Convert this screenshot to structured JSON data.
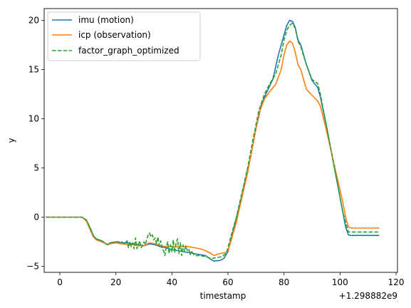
{
  "chart_data": {
    "type": "line",
    "title": "",
    "xlabel": "timestamp",
    "ylabel": "y",
    "x_offset_label": "+1.298882e9",
    "xlim": [
      -5.6,
      120.5
    ],
    "ylim": [
      -5.6,
      21.2
    ],
    "xticks": [
      0,
      20,
      40,
      60,
      80,
      100,
      120
    ],
    "yticks": [
      -5,
      0,
      5,
      10,
      15,
      20
    ],
    "xtick_labels": [
      "0",
      "20",
      "40",
      "60",
      "80",
      "100",
      "120"
    ],
    "ytick_labels": [
      "−5",
      "0",
      "5",
      "10",
      "15",
      "20"
    ],
    "grid": false,
    "legend_position": "upper-left",
    "series": [
      {
        "name": "imu (motion)",
        "color": "#1f77b4",
        "style": "solid",
        "points": [
          [
            -5,
            0
          ],
          [
            8,
            0
          ],
          [
            9.5,
            -0.3
          ],
          [
            11,
            -1.2
          ],
          [
            12,
            -1.9
          ],
          [
            13,
            -2.2
          ],
          [
            15,
            -2.4
          ],
          [
            17,
            -2.8
          ],
          [
            18,
            -2.6
          ],
          [
            20,
            -2.5
          ],
          [
            22,
            -2.6
          ],
          [
            24,
            -2.6
          ],
          [
            26,
            -2.7
          ],
          [
            28,
            -2.8
          ],
          [
            30,
            -2.9
          ],
          [
            32,
            -2.7
          ],
          [
            34,
            -2.8
          ],
          [
            36,
            -3.0
          ],
          [
            38,
            -3.1
          ],
          [
            40,
            -3.3
          ],
          [
            42,
            -3.4
          ],
          [
            44,
            -3.5
          ],
          [
            46,
            -3.6
          ],
          [
            48,
            -3.7
          ],
          [
            50,
            -3.8
          ],
          [
            52,
            -3.9
          ],
          [
            54,
            -4.3
          ],
          [
            55,
            -4.45
          ],
          [
            57,
            -4.4
          ],
          [
            58.5,
            -4.2
          ],
          [
            60,
            -3.5
          ],
          [
            62,
            -1.2
          ],
          [
            64,
            1.0
          ],
          [
            66,
            3.5
          ],
          [
            68,
            6.0
          ],
          [
            70,
            9.0
          ],
          [
            72,
            11.5
          ],
          [
            74,
            12.8
          ],
          [
            76,
            14.0
          ],
          [
            78,
            16.5
          ],
          [
            80,
            18.5
          ],
          [
            81,
            19.5
          ],
          [
            82,
            20.0
          ],
          [
            83,
            19.9
          ],
          [
            84,
            19.3
          ],
          [
            85,
            18.0
          ],
          [
            86,
            17.5
          ],
          [
            88,
            15.5
          ],
          [
            90,
            13.9
          ],
          [
            92,
            13.2
          ],
          [
            93,
            12.2
          ],
          [
            95,
            9.5
          ],
          [
            97,
            6.5
          ],
          [
            99,
            3.5
          ],
          [
            101,
            0.5
          ],
          [
            102,
            -1.0
          ],
          [
            103,
            -1.8
          ],
          [
            104,
            -1.85
          ],
          [
            114,
            -1.85
          ]
        ]
      },
      {
        "name": "icp (observation)",
        "color": "#ff7f0e",
        "style": "solid",
        "points": [
          [
            -5,
            0
          ],
          [
            8,
            0
          ],
          [
            9.5,
            -0.4
          ],
          [
            11,
            -1.4
          ],
          [
            12,
            -2.0
          ],
          [
            13,
            -2.3
          ],
          [
            15,
            -2.5
          ],
          [
            17,
            -2.8
          ],
          [
            18,
            -2.7
          ],
          [
            20,
            -2.6
          ],
          [
            22,
            -2.7
          ],
          [
            24,
            -2.75
          ],
          [
            26,
            -2.8
          ],
          [
            28,
            -2.9
          ],
          [
            30,
            -2.9
          ],
          [
            32,
            -2.6
          ],
          [
            34,
            -2.7
          ],
          [
            36,
            -2.9
          ],
          [
            38,
            -3.0
          ],
          [
            40,
            -3.0
          ],
          [
            42,
            -3.0
          ],
          [
            44,
            -3.0
          ],
          [
            46,
            -3.0
          ],
          [
            48,
            -3.1
          ],
          [
            50,
            -3.2
          ],
          [
            52,
            -3.4
          ],
          [
            54,
            -3.7
          ],
          [
            55,
            -3.9
          ],
          [
            57,
            -3.7
          ],
          [
            59,
            -3.6
          ],
          [
            60,
            -3.4
          ],
          [
            61,
            -2.5
          ],
          [
            63,
            -0.5
          ],
          [
            65,
            2.0
          ],
          [
            67,
            4.5
          ],
          [
            69,
            7.5
          ],
          [
            71,
            10.5
          ],
          [
            73,
            12.0
          ],
          [
            75,
            12.8
          ],
          [
            77,
            13.5
          ],
          [
            79,
            15.0
          ],
          [
            80,
            16.5
          ],
          [
            81,
            17.5
          ],
          [
            82,
            17.9
          ],
          [
            83,
            17.7
          ],
          [
            84,
            16.8
          ],
          [
            85,
            15.5
          ],
          [
            86,
            15.0
          ],
          [
            88,
            13.0
          ],
          [
            90,
            12.4
          ],
          [
            92,
            11.8
          ],
          [
            93,
            11.3
          ],
          [
            95,
            9.0
          ],
          [
            97,
            6.5
          ],
          [
            99,
            4.0
          ],
          [
            101,
            1.5
          ],
          [
            102,
            0.0
          ],
          [
            103,
            -1.0
          ],
          [
            104,
            -1.1
          ],
          [
            114,
            -1.1
          ]
        ]
      },
      {
        "name": "factor_graph_optimized",
        "color": "#2ca02c",
        "style": "dashed",
        "points": [
          [
            -5,
            0
          ],
          [
            8,
            0
          ],
          [
            9.5,
            -0.3
          ],
          [
            11,
            -1.2
          ],
          [
            12,
            -1.9
          ],
          [
            13,
            -2.2
          ],
          [
            15,
            -2.4
          ],
          [
            17,
            -2.8
          ],
          [
            18,
            -2.6
          ],
          [
            20,
            -2.5
          ],
          [
            22,
            -2.5
          ],
          [
            23,
            -2.7
          ],
          [
            24,
            -2.4
          ],
          [
            24.5,
            -3.1
          ],
          [
            25,
            -2.5
          ],
          [
            25.5,
            -3.0
          ],
          [
            26,
            -2.6
          ],
          [
            26.5,
            -3.2
          ],
          [
            27,
            -2.1
          ],
          [
            27.5,
            -3.2
          ],
          [
            28,
            -2.8
          ],
          [
            28.5,
            -2.4
          ],
          [
            29,
            -3.1
          ],
          [
            29.5,
            -2.9
          ],
          [
            30,
            -2.5
          ],
          [
            30.5,
            -2.8
          ],
          [
            31,
            -2.3
          ],
          [
            31.5,
            -1.8
          ],
          [
            32,
            -1.6
          ],
          [
            32.5,
            -2.0
          ],
          [
            33,
            -1.8
          ],
          [
            33.5,
            -2.3
          ],
          [
            34,
            -2.1
          ],
          [
            34.5,
            -2.7
          ],
          [
            35,
            -2.0
          ],
          [
            35.5,
            -2.9
          ],
          [
            36,
            -2.4
          ],
          [
            36.5,
            -3.2
          ],
          [
            37,
            -3.4
          ],
          [
            37.5,
            -3.9
          ],
          [
            38,
            -3.0
          ],
          [
            38.5,
            -2.5
          ],
          [
            39,
            -3.7
          ],
          [
            39.5,
            -2.8
          ],
          [
            40,
            -3.5
          ],
          [
            40.5,
            -2.3
          ],
          [
            41,
            -3.6
          ],
          [
            41.5,
            -2.6
          ],
          [
            42,
            -2.2
          ],
          [
            42.5,
            -3.7
          ],
          [
            43,
            -2.6
          ],
          [
            43.5,
            -3.9
          ],
          [
            44,
            -2.8
          ],
          [
            44.5,
            -3.5
          ],
          [
            45,
            -2.9
          ],
          [
            45.5,
            -3.4
          ],
          [
            46,
            -3.2
          ],
          [
            46.5,
            -3.8
          ],
          [
            47,
            -3.4
          ],
          [
            48,
            -3.9
          ],
          [
            50,
            -3.9
          ],
          [
            52,
            -4.0
          ],
          [
            54,
            -4.2
          ],
          [
            56,
            -4.1
          ],
          [
            58,
            -4.0
          ],
          [
            59.5,
            -3.6
          ],
          [
            61,
            -2.0
          ],
          [
            63,
            0.0
          ],
          [
            65,
            2.5
          ],
          [
            67,
            5.0
          ],
          [
            69,
            8.0
          ],
          [
            71,
            10.8
          ],
          [
            73,
            12.5
          ],
          [
            75,
            13.6
          ],
          [
            77,
            14.5
          ],
          [
            79,
            16.5
          ],
          [
            80,
            18.0
          ],
          [
            81,
            19.0
          ],
          [
            82,
            19.5
          ],
          [
            83,
            19.7
          ],
          [
            84,
            19.2
          ],
          [
            85,
            17.9
          ],
          [
            86,
            17.3
          ],
          [
            88,
            15.5
          ],
          [
            90,
            14.0
          ],
          [
            92,
            13.6
          ],
          [
            93,
            12.5
          ],
          [
            95,
            9.5
          ],
          [
            97,
            6.5
          ],
          [
            99,
            3.5
          ],
          [
            101,
            0.5
          ],
          [
            102,
            -0.5
          ],
          [
            103,
            -1.5
          ],
          [
            104,
            -1.5
          ],
          [
            114,
            -1.5
          ]
        ]
      }
    ]
  }
}
